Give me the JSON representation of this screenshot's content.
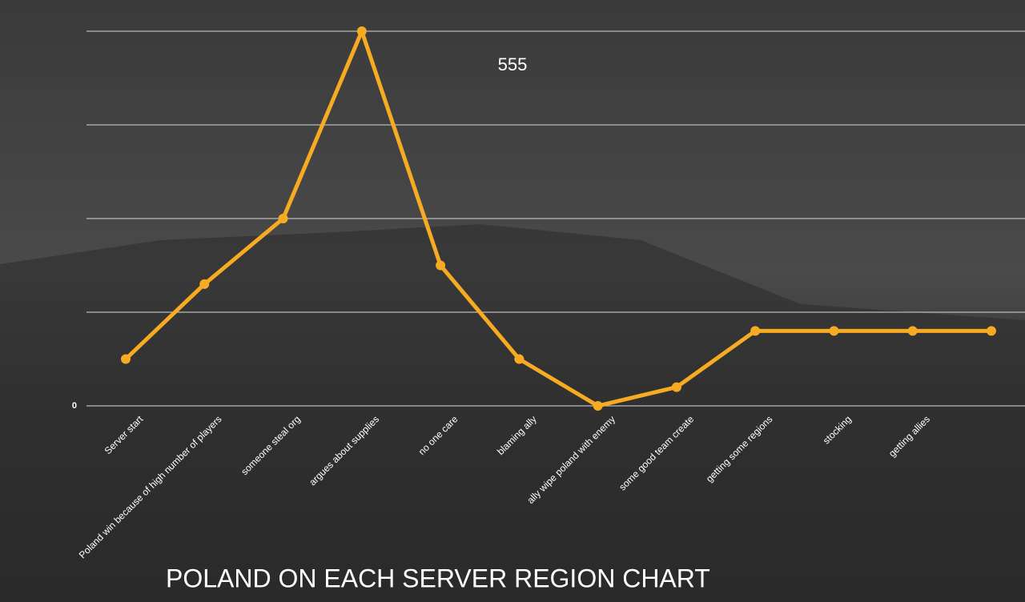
{
  "chart_data": {
    "type": "line",
    "title": "POLAND ON EACH SERVER REGION CHART",
    "annotation": "555",
    "categories": [
      "Server start",
      "Poland win because of high number of players",
      "someone steal org",
      "argues about supplies",
      "no one care",
      "blaming ally",
      "ally wipe poland with enemy",
      "some good team create",
      "getting some regions",
      "stocking",
      "getting allies",
      null
    ],
    "values": [
      0.5,
      1.3,
      2.0,
      4.0,
      1.5,
      0.5,
      0,
      0.2,
      0.8,
      0.8,
      0.8,
      0.8
    ],
    "color": "#f7ab22",
    "ylim": [
      0,
      4
    ],
    "yticks": [
      0
    ],
    "grid_lines": [
      0,
      1,
      2,
      3,
      4
    ],
    "grid": true
  }
}
